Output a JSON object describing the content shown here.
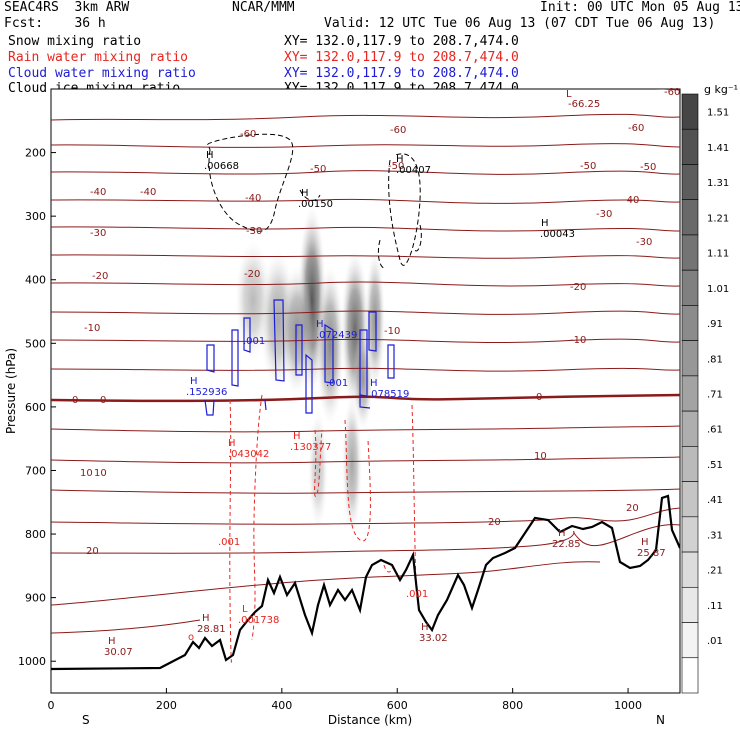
{
  "header": {
    "line1_left": "SEAC4RS  3km ARW",
    "line1_center": "NCAR/MMM",
    "line1_right": "Init: 00 UTC Mon 05 Aug 13",
    "line2_left": "Fcst:    36 h",
    "line2_right": "Valid: 12 UTC Tue 06 Aug 13 (07 CDT Tue 06 Aug 13)",
    "fields": [
      {
        "name": "Snow mixing ratio",
        "xy": "XY= 132.0,117.9 to 208.7,474.0",
        "color": "#000000"
      },
      {
        "name": "Rain water mixing ratio",
        "xy": "XY= 132.0,117.9 to 208.7,474.0",
        "color": "#e8251f"
      },
      {
        "name": "Cloud water mixing ratio",
        "xy": "XY= 132.0,117.9 to 208.7,474.0",
        "color": "#1c1cd6"
      },
      {
        "name": "Cloud ice mixing ratio",
        "xy": "XY= 132.0,117.9 to 208.7,474.0",
        "color": "#000000"
      }
    ]
  },
  "chart_data": {
    "type": "cross-section",
    "xlabel": "Distance (km)",
    "ylabel": "Pressure (hPa)",
    "x_ticks": [
      0,
      200,
      400,
      600,
      800,
      1000
    ],
    "y_ticks": [
      200,
      300,
      400,
      500,
      600,
      700,
      800,
      900,
      1000
    ],
    "xlim": [
      0,
      1090
    ],
    "ylim": [
      1050,
      100
    ],
    "end_labels": {
      "left": "S",
      "right": "N"
    },
    "colorbar": {
      "units": "g kg⁻¹",
      "levels": [
        "1.51",
        "1.41",
        "1.31",
        "1.21",
        "1.11",
        "1.01",
        ".91",
        ".81",
        ".71",
        ".61",
        ".51",
        ".41",
        ".31",
        ".21",
        ".11",
        ".01"
      ]
    },
    "temperature_contour_labels": [
      "-60",
      "-60",
      "-50",
      "-50",
      "-40",
      "-40",
      "-40",
      "-30",
      "-30",
      "-20",
      "-20",
      "-10",
      "-10",
      "0",
      "0",
      "0",
      "10",
      "10",
      "20",
      "20",
      "20",
      "-30",
      "-20",
      "-10",
      "10",
      "-30",
      "-40",
      "-50",
      "-60",
      "-50",
      "-60"
    ],
    "extrema": [
      {
        "kind": "H",
        "value": "-66.25",
        "color": "#8b1a1a"
      },
      {
        "kind": "H",
        "value": ".00668",
        "color": "#000000"
      },
      {
        "kind": "H",
        "value": ".00150",
        "color": "#000000"
      },
      {
        "kind": "H",
        "value": ".00407",
        "color": "#000000"
      },
      {
        "kind": "H",
        "value": ".00043",
        "color": "#000000"
      },
      {
        "kind": "H",
        "value": ".072439",
        "color": "#1c1cd6"
      },
      {
        "kind": "H",
        "value": ".152936",
        "color": "#1c1cd6"
      },
      {
        "kind": "H",
        "value": ".078519",
        "color": "#1c1cd6"
      },
      {
        "kind": "H",
        "value": ".043042",
        "color": "#e8251f"
      },
      {
        "kind": "H",
        "value": ".130377",
        "color": "#e8251f"
      },
      {
        "kind": "H",
        "value": "22.85",
        "color": "#8b1a1a"
      },
      {
        "kind": "H",
        "value": "25.87",
        "color": "#8b1a1a"
      },
      {
        "kind": "H",
        "value": "28.81",
        "color": "#8b1a1a"
      },
      {
        "kind": "H",
        "value": "30.07",
        "color": "#8b1a1a"
      },
      {
        "kind": "H",
        "value": "33.02",
        "color": "#8b1a1a"
      },
      {
        "kind": "L",
        "value": ".001738",
        "color": "#e8251f"
      }
    ],
    "misc_labels": [
      ".001",
      ".001",
      ".001",
      ".001",
      ".001"
    ]
  }
}
